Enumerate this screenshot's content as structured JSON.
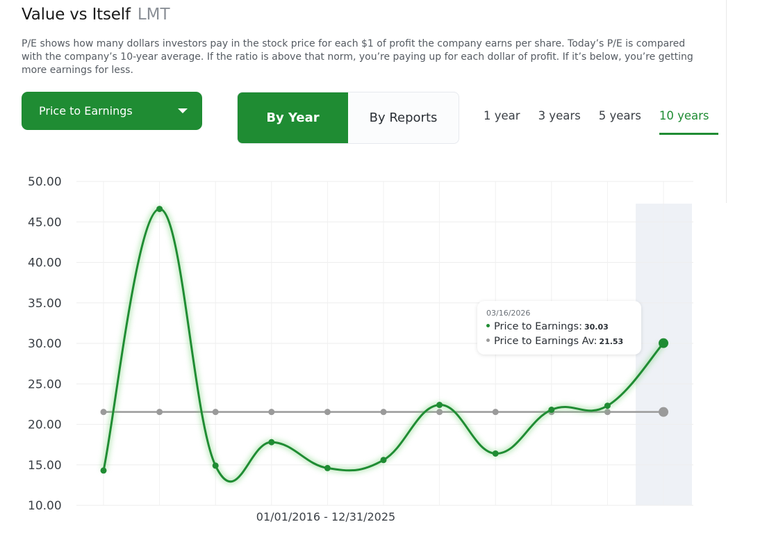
{
  "header": {
    "title": "Value vs Itself",
    "ticker": "LMT"
  },
  "description": "P/E shows how many dollars investors pay in the stock price for each $1 of profit the company earns per share. Today’s P/E is compared with the company’s 10-year average. If the ratio is above that norm, you’re paying up for each dollar of profit. If it’s below, you’re getting more earnings for less.",
  "controls": {
    "metric_select": "Price to Earnings",
    "mode_tabs": [
      {
        "label": "By Year",
        "active": true
      },
      {
        "label": "By Reports",
        "active": false
      }
    ],
    "range_tabs": [
      {
        "label": "1 year",
        "active": false
      },
      {
        "label": "3 years",
        "active": false
      },
      {
        "label": "5 years",
        "active": false
      },
      {
        "label": "10 years",
        "active": true
      }
    ]
  },
  "tooltip": {
    "date": "03/16/2026",
    "rows": [
      {
        "label": "Price to Earnings:",
        "value": "30.03"
      },
      {
        "label": "Price to Earnings Av:",
        "value": "21.53"
      }
    ]
  },
  "colors": {
    "accent": "#1f8c33",
    "average": "#9a9a9a",
    "highlight": "#eef1f6"
  },
  "chart_data": {
    "type": "line",
    "xlabel": "01/01/2016 - 12/31/2025",
    "ylim": [
      10,
      50
    ],
    "yticks": [
      "50.00",
      "45.00",
      "40.00",
      "35.00",
      "30.00",
      "25.00",
      "20.00",
      "15.00",
      "10.00"
    ],
    "grid": true,
    "highlighted_index": 10,
    "series": [
      {
        "name": "Price to Earnings",
        "values": [
          14.3,
          46.6,
          14.9,
          17.8,
          14.6,
          15.6,
          22.4,
          16.4,
          21.8,
          22.3,
          30.03
        ]
      },
      {
        "name": "Price to Earnings Av",
        "values": [
          21.53,
          21.53,
          21.53,
          21.53,
          21.53,
          21.53,
          21.53,
          21.53,
          21.53,
          21.53,
          21.53
        ]
      }
    ]
  }
}
